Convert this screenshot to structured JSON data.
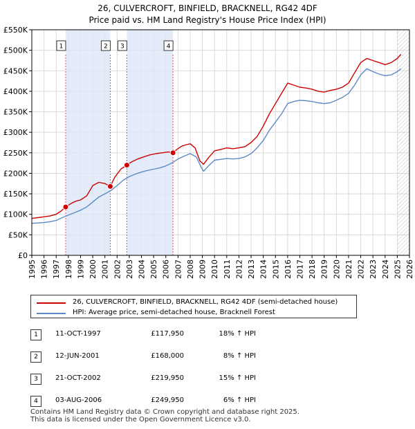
{
  "title_line1": "26, CULVERCROFT, BINFIELD, BRACKNELL, RG42 4DF",
  "title_line2": "Price paid vs. HM Land Registry's House Price Index (HPI)",
  "chart_data": {
    "type": "line",
    "title": "26, CULVERCROFT, BINFIELD, BRACKNELL, RG42 4DF — Price paid vs. HM Land Registry's House Price Index (HPI)",
    "xlabel": "",
    "ylabel": "",
    "xlim": [
      1995.0,
      2026.0
    ],
    "ylim": [
      0,
      550000
    ],
    "y_ticks": [
      0,
      50000,
      100000,
      150000,
      200000,
      250000,
      300000,
      350000,
      400000,
      450000,
      500000,
      550000
    ],
    "y_tick_labels": [
      "£0",
      "£50K",
      "£100K",
      "£150K",
      "£200K",
      "£250K",
      "£300K",
      "£350K",
      "£400K",
      "£450K",
      "£500K",
      "£550K"
    ],
    "x_ticks": [
      1995,
      1996,
      1997,
      1998,
      1999,
      2000,
      2001,
      2002,
      2003,
      2004,
      2005,
      2006,
      2007,
      2008,
      2009,
      2010,
      2011,
      2012,
      2013,
      2014,
      2015,
      2016,
      2017,
      2018,
      2019,
      2020,
      2021,
      2022,
      2023,
      2024,
      2025,
      2026
    ],
    "x_tick_labels": [
      "1995",
      "1996",
      "1997",
      "1998",
      "1999",
      "2000",
      "2001",
      "2002",
      "2003",
      "2004",
      "2005",
      "2006",
      "2007",
      "2008",
      "2009",
      "2010",
      "2011",
      "2012",
      "2013",
      "2014",
      "2015",
      "2016",
      "2017",
      "2018",
      "2019",
      "2020",
      "2021",
      "2022",
      "2023",
      "2024",
      "2025",
      "2026"
    ],
    "grid": true,
    "legend_position": "below",
    "series": [
      {
        "name": "26, CULVERCROFT, BINFIELD, BRACKNELL, RG42 4DF (semi-detached house)",
        "color": "#cc0000",
        "x": [
          1995.0,
          1995.5,
          1996.0,
          1996.5,
          1997.0,
          1997.4,
          1997.78,
          1998.2,
          1998.6,
          1999.0,
          1999.5,
          2000.0,
          2000.5,
          2001.0,
          2001.3,
          2001.44,
          2001.8,
          2002.3,
          2002.8,
          2003.2,
          2003.7,
          2004.2,
          2004.7,
          2005.2,
          2005.7,
          2006.2,
          2006.59,
          2006.9,
          2007.3,
          2007.7,
          2008.0,
          2008.4,
          2008.8,
          2009.1,
          2009.5,
          2010.0,
          2010.5,
          2011.0,
          2011.5,
          2012.0,
          2012.5,
          2013.0,
          2013.5,
          2014.0,
          2014.5,
          2015.0,
          2015.5,
          2016.0,
          2016.5,
          2017.0,
          2017.5,
          2018.0,
          2018.5,
          2019.0,
          2019.5,
          2020.0,
          2020.5,
          2021.0,
          2021.5,
          2022.0,
          2022.5,
          2023.0,
          2023.5,
          2024.0,
          2024.5,
          2025.0,
          2025.3
        ],
        "y": [
          90000,
          92000,
          94000,
          96000,
          100000,
          108000,
          117950,
          126000,
          132000,
          135000,
          145000,
          170000,
          178000,
          175000,
          170000,
          168000,
          190000,
          210000,
          219950,
          228000,
          235000,
          240000,
          245000,
          248000,
          250000,
          252000,
          249950,
          258000,
          266000,
          270000,
          272000,
          262000,
          230000,
          222000,
          238000,
          255000,
          258000,
          262000,
          260000,
          262000,
          265000,
          275000,
          290000,
          315000,
          345000,
          370000,
          395000,
          420000,
          415000,
          410000,
          408000,
          405000,
          400000,
          398000,
          402000,
          405000,
          410000,
          420000,
          445000,
          470000,
          480000,
          475000,
          470000,
          465000,
          470000,
          480000,
          490000
        ]
      },
      {
        "name": "HPI: Average price, semi-detached house, Bracknell Forest",
        "color": "#5b8ac6",
        "x": [
          1995.0,
          1995.5,
          1996.0,
          1996.5,
          1997.0,
          1997.5,
          1998.0,
          1998.5,
          1999.0,
          1999.5,
          2000.0,
          2000.5,
          2001.0,
          2001.5,
          2002.0,
          2002.5,
          2003.0,
          2003.5,
          2004.0,
          2004.5,
          2005.0,
          2005.5,
          2006.0,
          2006.5,
          2007.0,
          2007.5,
          2008.0,
          2008.5,
          2008.9,
          2009.1,
          2009.5,
          2010.0,
          2010.5,
          2011.0,
          2011.5,
          2012.0,
          2012.5,
          2013.0,
          2013.5,
          2014.0,
          2014.5,
          2015.0,
          2015.5,
          2016.0,
          2016.5,
          2017.0,
          2017.5,
          2018.0,
          2018.5,
          2019.0,
          2019.5,
          2020.0,
          2020.5,
          2021.0,
          2021.5,
          2022.0,
          2022.5,
          2023.0,
          2023.5,
          2024.0,
          2024.5,
          2025.0,
          2025.3
        ],
        "y": [
          78000,
          79000,
          80000,
          82000,
          85000,
          92000,
          98000,
          104000,
          110000,
          118000,
          130000,
          142000,
          150000,
          158000,
          170000,
          183000,
          192000,
          198000,
          203000,
          207000,
          210000,
          213000,
          218000,
          225000,
          235000,
          242000,
          248000,
          240000,
          215000,
          205000,
          218000,
          232000,
          234000,
          236000,
          235000,
          236000,
          240000,
          248000,
          262000,
          280000,
          305000,
          325000,
          345000,
          370000,
          375000,
          378000,
          377000,
          375000,
          372000,
          370000,
          372000,
          378000,
          385000,
          395000,
          415000,
          440000,
          455000,
          448000,
          442000,
          438000,
          440000,
          448000,
          455000
        ]
      }
    ],
    "sales": [
      {
        "id": "1",
        "x": 1997.78,
        "y": 117950
      },
      {
        "id": "2",
        "x": 2001.44,
        "y": 168000
      },
      {
        "id": "3",
        "x": 2002.8,
        "y": 219950
      },
      {
        "id": "4",
        "x": 2006.59,
        "y": 249950
      }
    ],
    "shaded_spans": [
      [
        1997.78,
        2001.44
      ],
      [
        2002.8,
        2006.59
      ]
    ],
    "hatched_from": 2025.0
  },
  "legend": {
    "property_label": "26, CULVERCROFT, BINFIELD, BRACKNELL, RG42 4DF (semi-detached house)",
    "hpi_label": "HPI: Average price, semi-detached house, Bracknell Forest"
  },
  "sales_table": [
    {
      "id": "1",
      "date": "11-OCT-1997",
      "price": "£117,950",
      "hpi": "18% ↑ HPI"
    },
    {
      "id": "2",
      "date": "12-JUN-2001",
      "price": "£168,000",
      "hpi": "8% ↑ HPI"
    },
    {
      "id": "3",
      "date": "21-OCT-2002",
      "price": "£219,950",
      "hpi": "15% ↑ HPI"
    },
    {
      "id": "4",
      "date": "03-AUG-2006",
      "price": "£249,950",
      "hpi": "6% ↑ HPI"
    }
  ],
  "footer_line1": "Contains HM Land Registry data © Crown copyright and database right 2025.",
  "footer_line2": "This data is licensed under the Open Government Licence v3.0."
}
